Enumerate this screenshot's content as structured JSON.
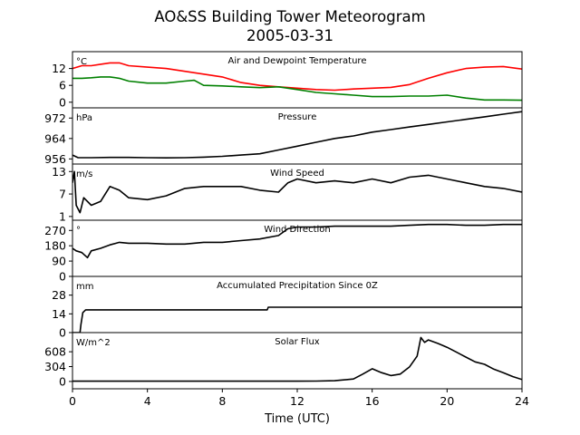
{
  "figure": {
    "title": "AO&SS Building Tower Meteorogram",
    "subtitle": "2005-03-31",
    "xlabel": "Time (UTC)"
  },
  "chart_data": {
    "type": "line",
    "x_ticks": [
      0,
      4,
      8,
      12,
      16,
      20,
      24
    ],
    "xlim": [
      0,
      24
    ],
    "panels": [
      {
        "id": "temperature",
        "title": "Air and Dewpoint Temperature",
        "unit": "°C",
        "ylim": [
          -2,
          18
        ],
        "yticks": [
          0,
          6,
          12
        ],
        "series": [
          {
            "color": "#ff0000",
            "x": [
              0,
              0.5,
              1,
              1.5,
              2,
              2.5,
              3,
              4,
              5,
              6,
              7,
              8,
              9,
              10,
              11,
              12,
              13,
              14,
              15,
              16,
              17,
              18,
              19,
              20,
              21,
              22,
              23,
              24
            ],
            "values": [
              12,
              13,
              13,
              13.5,
              14,
              14,
              13,
              12.5,
              12,
              11,
              10,
              9,
              7,
              6,
              5.5,
              5,
              4.5,
              4.3,
              4.7,
              5,
              5.3,
              6.3,
              8.5,
              10.5,
              12,
              12.5,
              12.7,
              11.8
            ]
          },
          {
            "color": "#008000",
            "x": [
              0,
              0.5,
              1,
              1.5,
              2,
              2.5,
              3,
              4,
              5,
              6,
              6.5,
              7,
              8,
              9,
              10,
              11,
              12,
              13,
              14,
              15,
              16,
              17,
              18,
              19,
              20,
              21,
              22,
              23,
              24
            ],
            "values": [
              8.5,
              8.5,
              8.7,
              9,
              9,
              8.5,
              7.5,
              6.8,
              6.8,
              7.5,
              7.8,
              6,
              5.8,
              5.5,
              5.2,
              5.5,
              4.5,
              3.5,
              3,
              2.5,
              2,
              2,
              2.2,
              2.2,
              2.5,
              1.5,
              0.8,
              0.8,
              0.7
            ]
          }
        ]
      },
      {
        "id": "pressure",
        "title": "Pressure",
        "unit": "hPa",
        "ylim": [
          954,
          976
        ],
        "yticks": [
          956,
          964,
          972
        ],
        "series": [
          {
            "color": "#000000",
            "x": [
              0,
              0.3,
              1,
              2,
              3,
              4,
              5,
              6,
              7,
              8,
              9,
              10,
              11,
              12,
              13,
              14,
              15,
              16,
              17,
              18,
              19,
              20,
              21,
              22,
              23,
              24
            ],
            "values": [
              957.5,
              956.5,
              956.5,
              956.6,
              956.6,
              956.5,
              956.4,
              956.5,
              956.7,
              957,
              957.5,
              958,
              959.5,
              961,
              962.5,
              964,
              965,
              966.5,
              967.5,
              968.5,
              969.5,
              970.5,
              971.5,
              972.5,
              973.5,
              974.5
            ]
          }
        ]
      },
      {
        "id": "wind_speed",
        "title": "Wind Speed",
        "unit": "m/s",
        "ylim": [
          0,
          15
        ],
        "yticks": [
          1,
          7,
          13
        ],
        "series": [
          {
            "color": "#000000",
            "x": [
              0,
              0.1,
              0.2,
              0.4,
              0.6,
              1,
              1.5,
              2,
              2.5,
              3,
              4,
              5,
              6,
              7,
              8,
              9,
              10,
              11,
              11.5,
              12,
              13,
              14,
              15,
              16,
              17,
              18,
              19,
              20,
              21,
              22,
              23,
              24
            ],
            "values": [
              10,
              13,
              4,
              2,
              6,
              4,
              5,
              9,
              8,
              6,
              5.5,
              6.5,
              8.5,
              9,
              9,
              9,
              8,
              7.5,
              10,
              11,
              10,
              10.5,
              10,
              11,
              10,
              11.5,
              12,
              11,
              10,
              9,
              8.5,
              7.5
            ]
          }
        ]
      },
      {
        "id": "wind_direction",
        "title": "Wind Direction",
        "unit": "°",
        "ylim": [
          0,
          330
        ],
        "yticks": [
          0,
          90,
          180,
          270
        ],
        "series": [
          {
            "color": "#000000",
            "x": [
              0,
              0.2,
              0.5,
              0.8,
              1,
              1.5,
              2,
              2.5,
              3,
              4,
              5,
              6,
              7,
              8,
              9,
              10,
              11,
              11.5,
              12,
              13,
              14,
              15,
              16,
              17,
              18,
              19,
              20,
              21,
              22,
              23,
              24
            ],
            "values": [
              165,
              150,
              140,
              110,
              150,
              165,
              185,
              200,
              195,
              195,
              190,
              190,
              200,
              200,
              210,
              220,
              240,
              280,
              290,
              290,
              295,
              295,
              295,
              295,
              300,
              305,
              305,
              300,
              300,
              305,
              305
            ]
          }
        ]
      },
      {
        "id": "precipitation",
        "title": "Accumulated Precipitation Since 0Z",
        "unit": "mm",
        "ylim": [
          0,
          42
        ],
        "yticks": [
          0,
          14,
          28
        ],
        "series": [
          {
            "color": "#000000",
            "x": [
              0,
              0.4,
              0.45,
              0.55,
              0.7,
              10.4,
              10.45,
              24
            ],
            "values": [
              0,
              0,
              6,
              15,
              17,
              17,
              19,
              19
            ]
          }
        ]
      },
      {
        "id": "solar_flux",
        "title": "Solar Flux",
        "unit": "W/m^2",
        "ylim": [
          -150,
          1000
        ],
        "yticks": [
          0,
          304,
          608
        ],
        "series": [
          {
            "color": "#000000",
            "x": [
              0,
              12,
              13,
              14,
              15,
              15.5,
              16,
              16.5,
              17,
              17.5,
              18,
              18.4,
              18.6,
              18.8,
              19,
              19.5,
              20,
              20.5,
              21,
              21.5,
              22,
              22.5,
              23,
              23.5,
              24
            ],
            "values": [
              5,
              5,
              8,
              15,
              50,
              150,
              260,
              180,
              120,
              150,
              300,
              520,
              900,
              800,
              850,
              780,
              700,
              600,
              500,
              400,
              350,
              250,
              180,
              100,
              40
            ]
          }
        ]
      }
    ]
  }
}
